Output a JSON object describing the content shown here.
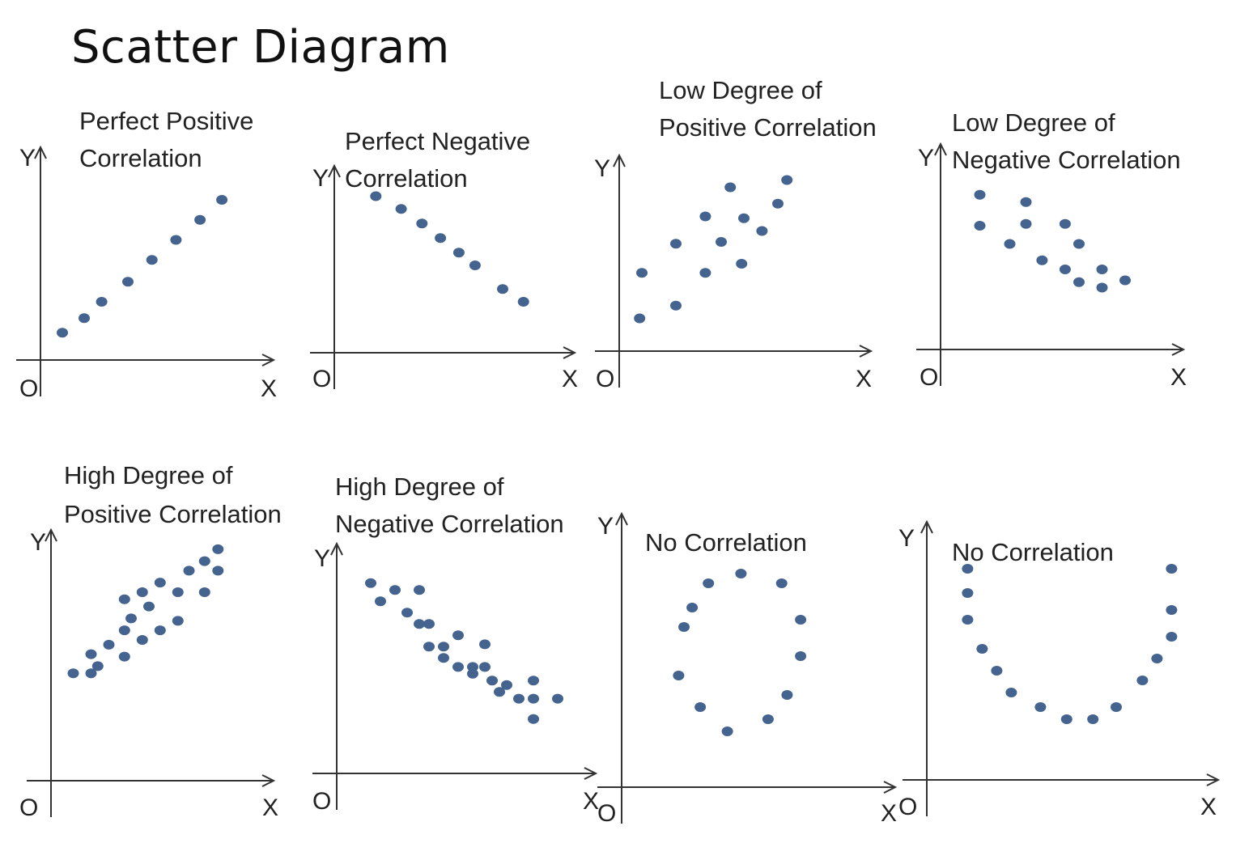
{
  "title": "Scatter Diagram",
  "colors": {
    "dot": "#44648f",
    "axis": "#333333",
    "text": "#222222"
  },
  "chart_data": [
    {
      "type": "scatter",
      "title_lines": [
        "Perfect Positive",
        "Correlation"
      ],
      "origin_label": "O",
      "xlabel": "X",
      "ylabel": "Y",
      "xlim": [
        0,
        10
      ],
      "ylim": [
        0,
        10
      ],
      "points": [
        [
          1,
          1.5
        ],
        [
          2,
          2.3
        ],
        [
          2.8,
          3.2
        ],
        [
          4,
          4.3
        ],
        [
          5.1,
          5.5
        ],
        [
          6.2,
          6.6
        ],
        [
          7.3,
          7.7
        ],
        [
          8.3,
          8.8
        ]
      ]
    },
    {
      "type": "scatter",
      "title_lines": [
        "Perfect Negative",
        "Correlation"
      ],
      "origin_label": "O",
      "xlabel": "X",
      "ylabel": "Y",
      "xlim": [
        0,
        10
      ],
      "ylim": [
        0,
        10
      ],
      "points": [
        [
          1.8,
          8.6
        ],
        [
          2.9,
          7.9
        ],
        [
          3.8,
          7.1
        ],
        [
          4.6,
          6.3
        ],
        [
          5.4,
          5.5
        ],
        [
          6.1,
          4.8
        ],
        [
          7.3,
          3.5
        ],
        [
          8.2,
          2.8
        ]
      ]
    },
    {
      "type": "scatter",
      "title_lines": [
        "Low Degree of",
        "Positive Correlation"
      ],
      "origin_label": "O",
      "xlabel": "X",
      "ylabel": "Y",
      "xlim": [
        0,
        10
      ],
      "ylim": [
        0,
        10
      ],
      "points": [
        [
          0.9,
          1.8
        ],
        [
          1,
          4.3
        ],
        [
          2.5,
          2.5
        ],
        [
          2.5,
          5.9
        ],
        [
          3.8,
          4.3
        ],
        [
          3.8,
          7.4
        ],
        [
          4.5,
          6
        ],
        [
          4.9,
          9
        ],
        [
          5.5,
          7.3
        ],
        [
          5.4,
          4.8
        ],
        [
          6.3,
          6.6
        ],
        [
          7,
          8.1
        ],
        [
          7.4,
          9.4
        ]
      ]
    },
    {
      "type": "scatter",
      "title_lines": [
        "Low Degree of",
        "Negative Correlation"
      ],
      "origin_label": "O",
      "xlabel": "X",
      "ylabel": "Y",
      "xlim": [
        0,
        10
      ],
      "ylim": [
        0,
        10
      ],
      "points": [
        [
          1.7,
          8.5
        ],
        [
          1.7,
          6.8
        ],
        [
          3,
          5.8
        ],
        [
          3.7,
          8.1
        ],
        [
          3.7,
          6.9
        ],
        [
          4.4,
          4.9
        ],
        [
          5.4,
          6.9
        ],
        [
          6,
          5.8
        ],
        [
          5.4,
          4.4
        ],
        [
          6,
          3.7
        ],
        [
          7,
          4.4
        ],
        [
          7,
          3.4
        ],
        [
          8,
          3.8
        ]
      ]
    },
    {
      "type": "scatter",
      "title_lines": [
        "High Degree of",
        "Positive Correlation"
      ],
      "origin_label": "O",
      "xlabel": "X",
      "ylabel": "Y",
      "xlim": [
        0,
        10
      ],
      "ylim": [
        0,
        10
      ],
      "points": [
        [
          1,
          4.5
        ],
        [
          1.8,
          4.5
        ],
        [
          1.8,
          5.3
        ],
        [
          2.1,
          4.8
        ],
        [
          2.6,
          5.7
        ],
        [
          3.3,
          5.2
        ],
        [
          3.3,
          6.3
        ],
        [
          3.3,
          7.6
        ],
        [
          3.6,
          6.8
        ],
        [
          4.1,
          7.9
        ],
        [
          4.1,
          5.9
        ],
        [
          4.4,
          7.3
        ],
        [
          4.9,
          8.3
        ],
        [
          4.9,
          6.3
        ],
        [
          5.7,
          7.9
        ],
        [
          5.7,
          6.7
        ],
        [
          6.2,
          8.8
        ],
        [
          6.9,
          7.9
        ],
        [
          6.9,
          9.2
        ],
        [
          7.5,
          9.7
        ],
        [
          7.5,
          8.8
        ]
      ]
    },
    {
      "type": "scatter",
      "title_lines": [
        "High Degree of",
        "Negative Correlation"
      ],
      "origin_label": "O",
      "xlabel": "X",
      "ylabel": "Y",
      "xlim": [
        0,
        10
      ],
      "ylim": [
        0,
        10
      ],
      "points": [
        [
          1.4,
          8.4
        ],
        [
          1.8,
          7.6
        ],
        [
          2.4,
          8.1
        ],
        [
          2.9,
          7.1
        ],
        [
          3.4,
          6.6
        ],
        [
          3.4,
          8.1
        ],
        [
          3.8,
          6.6
        ],
        [
          3.8,
          5.6
        ],
        [
          4.4,
          5.6
        ],
        [
          4.4,
          5.1
        ],
        [
          5,
          4.7
        ],
        [
          5,
          6.1
        ],
        [
          5.6,
          4.4
        ],
        [
          5.6,
          4.7
        ],
        [
          6.1,
          4.7
        ],
        [
          6.1,
          5.7
        ],
        [
          6.4,
          4.1
        ],
        [
          6.7,
          3.6
        ],
        [
          7,
          3.9
        ],
        [
          7.5,
          3.3
        ],
        [
          8.1,
          3.3
        ],
        [
          8.1,
          2.4
        ],
        [
          8.1,
          4.1
        ],
        [
          9.1,
          3.3
        ]
      ]
    },
    {
      "type": "scatter",
      "title_lines": [
        "No Correlation"
      ],
      "origin_label": "O",
      "xlabel": "X",
      "ylabel": "Y",
      "xlim": [
        0,
        10
      ],
      "ylim": [
        0,
        10
      ],
      "points": [
        [
          2.3,
          6.6
        ],
        [
          2.6,
          7.4
        ],
        [
          3.2,
          8.4
        ],
        [
          4.4,
          8.8
        ],
        [
          5.9,
          8.4
        ],
        [
          6.6,
          6.9
        ],
        [
          6.6,
          5.4
        ],
        [
          6.1,
          3.8
        ],
        [
          5.4,
          2.8
        ],
        [
          3.9,
          2.3
        ],
        [
          2.9,
          3.3
        ],
        [
          2.1,
          4.6
        ]
      ]
    },
    {
      "type": "scatter",
      "title_lines": [
        "No Correlation"
      ],
      "origin_label": "O",
      "xlabel": "X",
      "ylabel": "Y",
      "xlim": [
        0,
        10
      ],
      "ylim": [
        0,
        10
      ],
      "points": [
        [
          1.4,
          8.7
        ],
        [
          1.4,
          7.7
        ],
        [
          1.4,
          6.6
        ],
        [
          1.9,
          5.4
        ],
        [
          2.4,
          4.5
        ],
        [
          2.9,
          3.6
        ],
        [
          3.9,
          3
        ],
        [
          4.8,
          2.5
        ],
        [
          5.7,
          2.5
        ],
        [
          6.5,
          3
        ],
        [
          7.4,
          4.1
        ],
        [
          7.9,
          5
        ],
        [
          8.4,
          5.9
        ],
        [
          8.4,
          7
        ],
        [
          8.4,
          8.7
        ]
      ]
    }
  ]
}
